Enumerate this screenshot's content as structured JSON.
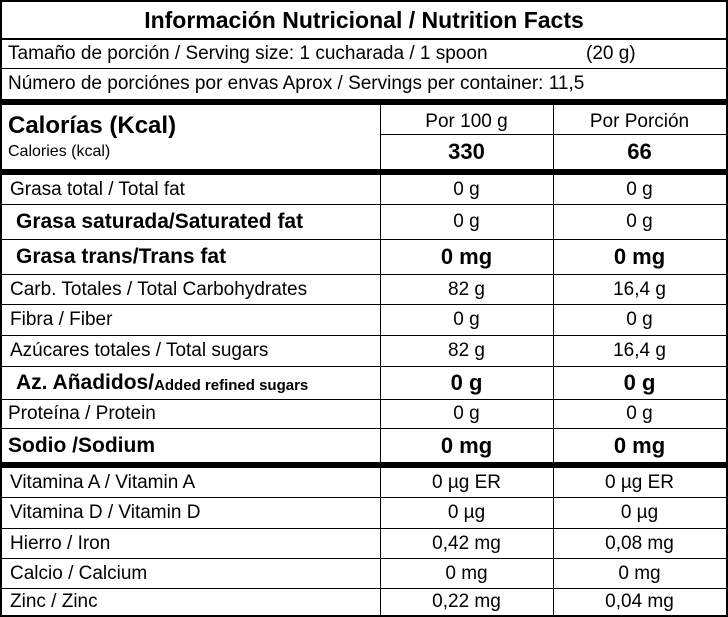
{
  "title": "Información Nutricional / Nutrition Facts",
  "serving_size": {
    "label": "Tamaño de porción / Serving size: 1 cucharada / 1 spoon",
    "weight": "(20 g)"
  },
  "servings_per_container": "Número de porciónes por envas Aprox / Servings per container: 11,5",
  "calories": {
    "label_es": "Calorías (Kcal)",
    "label_en": "Calories (kcal)",
    "col_100g_header": "Por 100 g",
    "col_portion_header": "Por Porción",
    "per_100g": "330",
    "per_portion": "66"
  },
  "nutrients": [
    {
      "label": "Grasa total / Total fat",
      "per_100g": "0 g",
      "per_portion": "0 g"
    },
    {
      "label": "Grasa saturada/Saturated fat",
      "per_100g": "0 g",
      "per_portion": "0 g"
    },
    {
      "label": "Grasa trans/Trans fat",
      "per_100g": "0 mg",
      "per_portion": "0 mg"
    },
    {
      "label": "Carb. Totales / Total Carbohydrates",
      "per_100g": "82 g",
      "per_portion": "16,4 g"
    },
    {
      "label": "Fibra / Fiber",
      "per_100g": "0 g",
      "per_portion": "0 g"
    },
    {
      "label": "Azúcares totales / Total sugars",
      "per_100g": "82 g",
      "per_portion": "16,4 g"
    },
    {
      "label_main": "Az. Añadidos/",
      "label_sub": "Added refined sugars",
      "per_100g": "0 g",
      "per_portion": "0 g"
    },
    {
      "label": "Proteína / Protein",
      "per_100g": "0 g",
      "per_portion": "0 g"
    },
    {
      "label": "Sodio /Sodium",
      "per_100g": "0 mg",
      "per_portion": "0 mg"
    }
  ],
  "vitamins": [
    {
      "label": "Vitamina A / Vitamin A",
      "per_100g": "0 µg ER",
      "per_portion": "0 µg ER"
    },
    {
      "label": "Vitamina D / Vitamin D",
      "per_100g": "0 µg",
      "per_portion": "0 µg"
    },
    {
      "label": "Hierro / Iron",
      "per_100g": "0,42 mg",
      "per_portion": "0,08 mg"
    },
    {
      "label": "Calcio / Calcium",
      "per_100g": "0 mg",
      "per_portion": "0 mg"
    },
    {
      "label": "Zinc / Zinc",
      "per_100g": "0,22 mg",
      "per_portion": "0,04 mg"
    }
  ]
}
